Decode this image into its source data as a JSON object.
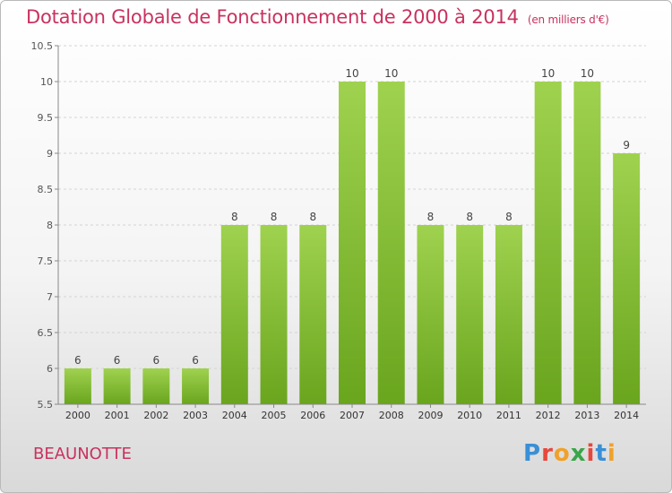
{
  "header": {
    "title": "Dotation Globale de Fonctionnement de 2000 à 2014",
    "unit": "(en milliers d'€)"
  },
  "footer": {
    "commune": "BEAUNOTTE",
    "logo_text": "Proxiti",
    "logo_letter_colors": [
      "#3a8fd6",
      "#e8473c",
      "#f0a12a",
      "#3aa548",
      "#e8473c",
      "#3a8fd6",
      "#f0a12a"
    ]
  },
  "chart_data": {
    "type": "bar",
    "title": "Dotation Globale de Fonctionnement de 2000 à 2014",
    "subtitle": "(en milliers d'€)",
    "xlabel": "",
    "ylabel": "",
    "categories": [
      "2000",
      "2001",
      "2002",
      "2003",
      "2004",
      "2005",
      "2006",
      "2007",
      "2008",
      "2009",
      "2010",
      "2011",
      "2012",
      "2013",
      "2014"
    ],
    "values": [
      6,
      6,
      6,
      6,
      8,
      8,
      8,
      10,
      10,
      8,
      8,
      8,
      10,
      10,
      9
    ],
    "data_labels": [
      "6",
      "6",
      "6",
      "6",
      "8",
      "8",
      "8",
      "10",
      "10",
      "8",
      "8",
      "8",
      "10",
      "10",
      "9"
    ],
    "ylim": [
      5.5,
      10.5
    ],
    "yticks": [
      "5.5",
      "6",
      "6.5",
      "7",
      "7.5",
      "8",
      "8.5",
      "9",
      "9.5",
      "10",
      "10.5"
    ],
    "grid": true,
    "bar_color_top": "#9fd24f",
    "bar_color_bottom": "#6aa51e"
  }
}
